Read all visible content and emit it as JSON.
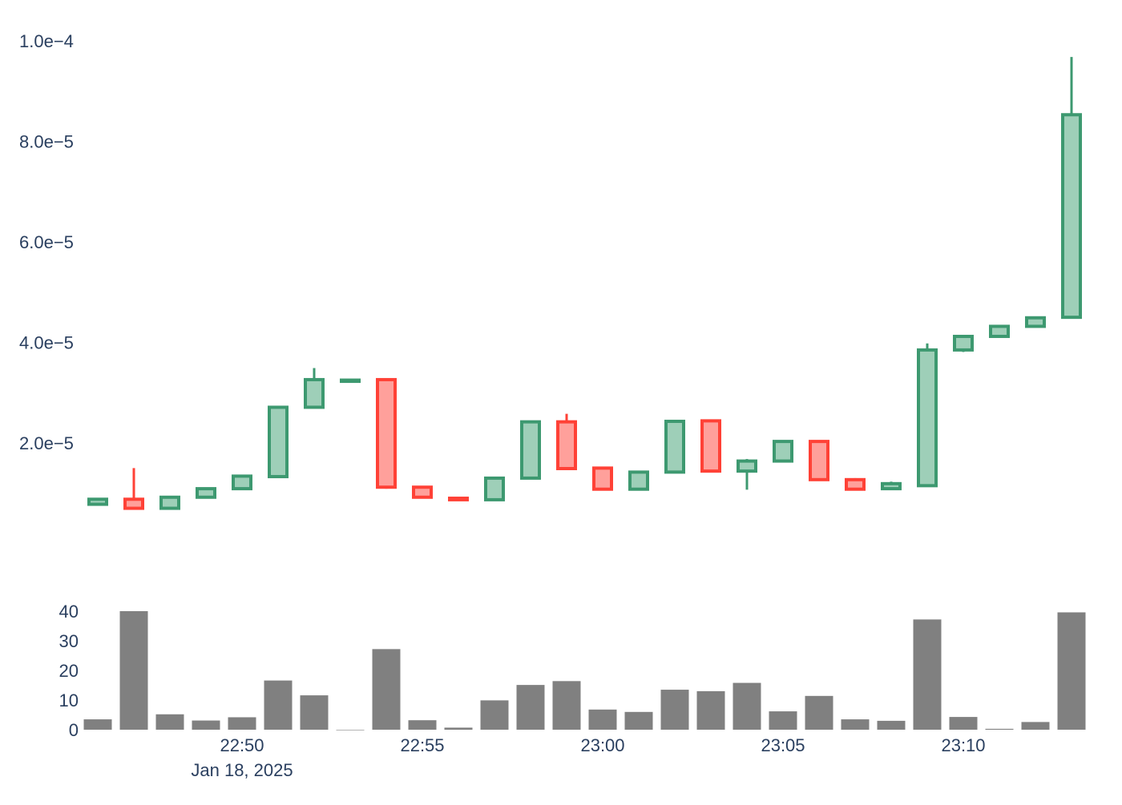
{
  "chart_data": {
    "type": "candlestick",
    "x": [
      "22:46",
      "22:47",
      "22:48",
      "22:49",
      "22:50",
      "22:51",
      "22:52",
      "22:53",
      "22:54",
      "22:55",
      "22:56",
      "22:57",
      "22:58",
      "22:59",
      "23:00",
      "23:01",
      "23:02",
      "23:03",
      "23:04",
      "23:05",
      "23:06",
      "23:07",
      "23:08",
      "23:09",
      "23:10",
      "23:11",
      "23:12",
      "23:13"
    ],
    "open": [
      7.8e-06,
      8.8e-06,
      7e-06,
      9.2e-06,
      1.09e-05,
      1.33e-05,
      2.71e-05,
      3.24e-05,
      3.26e-05,
      1.12e-05,
      9e-06,
      8.7e-06,
      1.3e-05,
      2.42e-05,
      1.5e-05,
      1.08e-05,
      1.42e-05,
      2.44e-05,
      1.44e-05,
      1.64e-05,
      2.03e-05,
      1.27e-05,
      1.09e-05,
      1.15e-05,
      3.85e-05,
      4.12e-05,
      4.32e-05,
      4.5e-05
    ],
    "high": [
      8.8e-06,
      1.5e-05,
      9.3e-06,
      1.1e-05,
      1.36e-05,
      2.73e-05,
      3.49e-05,
      3.26e-05,
      3.26e-05,
      1.12e-05,
      9.2e-06,
      1.32e-05,
      2.43e-05,
      2.58e-05,
      1.5e-05,
      1.43e-05,
      2.44e-05,
      2.44e-05,
      1.68e-05,
      2.05e-05,
      2.04e-05,
      1.3e-05,
      1.23e-05,
      3.98e-05,
      4.14e-05,
      4.34e-05,
      4.51e-05,
      9.68e-05
    ],
    "low": [
      7.6e-06,
      6.8e-06,
      6.8e-06,
      9e-06,
      1.07e-05,
      1.32e-05,
      2.7e-05,
      3.23e-05,
      1.09e-05,
      9e-06,
      8.5e-06,
      8.6e-06,
      1.29e-05,
      1.48e-05,
      1.07e-05,
      1.07e-05,
      1.42e-05,
      1.43e-05,
      1.07e-05,
      1.63e-05,
      1.26e-05,
      1.07e-05,
      1.07e-05,
      1.15e-05,
      3.81e-05,
      4.12e-05,
      4.31e-05,
      4.5e-05
    ],
    "close": [
      8.8e-06,
      7e-06,
      9.2e-06,
      1.09e-05,
      1.34e-05,
      2.71e-05,
      3.26e-05,
      3.25e-05,
      1.12e-05,
      9.2e-06,
      8.7e-06,
      1.3e-05,
      2.42e-05,
      1.49e-05,
      1.08e-05,
      1.42e-05,
      2.43e-05,
      1.44e-05,
      1.64e-05,
      2.03e-05,
      1.27e-05,
      1.08e-05,
      1.19e-05,
      3.85e-05,
      4.12e-05,
      4.32e-05,
      4.49e-05,
      8.53e-05
    ],
    "volume": [
      3.5,
      40,
      5.2,
      3.1,
      4.2,
      16.6,
      11.6,
      0,
      27.2,
      3.2,
      0.7,
      9.9,
      15.1,
      16.4,
      6.8,
      6.0,
      13.5,
      13.0,
      15.8,
      6.2,
      11.4,
      3.5,
      3.0,
      37.2,
      4.3,
      0.3,
      2.6,
      39.6
    ],
    "price_axis": {
      "range": [
        0,
        0.000105
      ],
      "ticks": [
        2e-05,
        4e-05,
        6e-05,
        8e-05,
        0.0001
      ],
      "tick_labels": [
        "2.0e−5",
        "4.0e−5",
        "6.0e−5",
        "8.0e−5",
        "1.0e−4"
      ]
    },
    "volume_axis": {
      "range": [
        0,
        42
      ],
      "ticks": [
        0,
        10,
        20,
        30,
        40
      ],
      "tick_labels": [
        "0",
        "10",
        "20",
        "30",
        "40"
      ]
    },
    "x_axis": {
      "tick_index": [
        4,
        9,
        14,
        19,
        24
      ],
      "tick_labels": [
        "22:50",
        "22:55",
        "23:00",
        "23:05",
        "23:10"
      ],
      "date_label": "Jan 18, 2025"
    },
    "colors": {
      "increasing_line": "#3d9970",
      "increasing_fill": "#9ecfb8",
      "decreasing_line": "#ff4136",
      "decreasing_fill": "#ffa09b",
      "volume": "#808080",
      "axis_text": "#2a3f5f"
    },
    "grid": false,
    "legend": "none"
  }
}
